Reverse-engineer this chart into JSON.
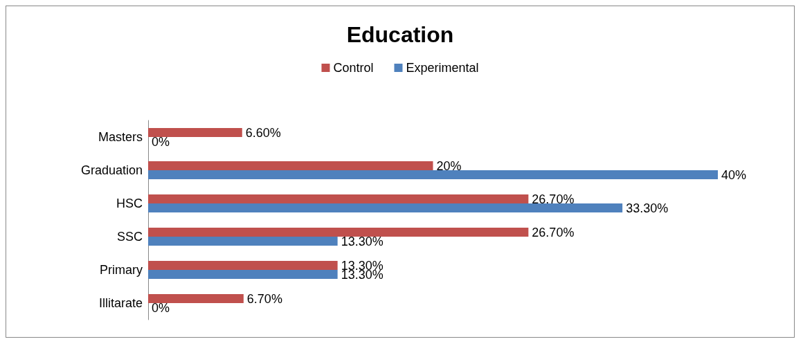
{
  "chart_data": {
    "type": "bar",
    "title": "Education",
    "orientation": "horizontal",
    "legend": "top",
    "categories": [
      "Masters",
      "Graduation",
      "HSC",
      "SSC",
      "Primary",
      "Illitarate"
    ],
    "series": [
      {
        "name": "Control",
        "color": "#c0504d",
        "values": [
          6.6,
          20,
          26.7,
          26.7,
          13.3,
          6.7
        ],
        "value_labels": [
          "6.60%",
          "20%",
          "26.70%",
          "26.70%",
          "13.30%",
          "6.70%"
        ]
      },
      {
        "name": "Experimental",
        "color": "#4f81bd",
        "values": [
          0,
          40,
          33.3,
          13.3,
          13.3,
          0
        ],
        "value_labels": [
          "0%",
          "40%",
          "33.30%",
          "13.30%",
          "13.30%",
          "0%"
        ]
      }
    ]
  }
}
